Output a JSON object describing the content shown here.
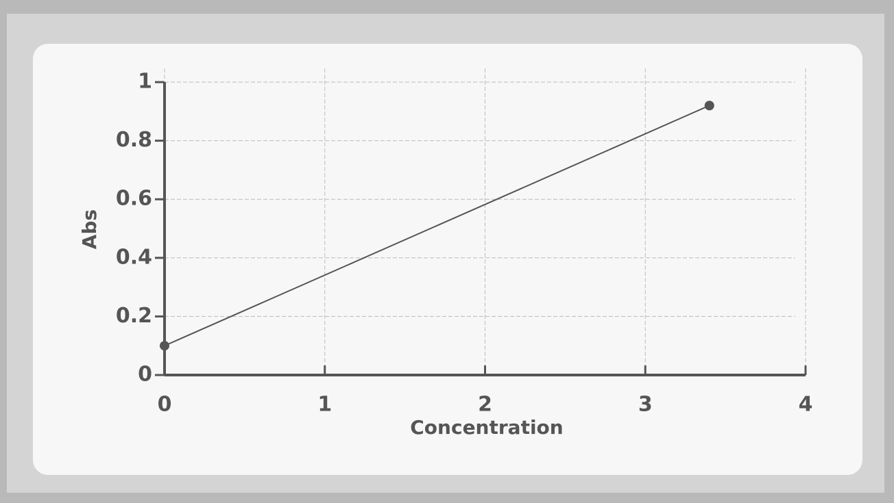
{
  "chart_data": {
    "type": "line",
    "x_label": "Concentration",
    "y_label": "Abs",
    "x": [
      0,
      3.4
    ],
    "values": [
      0.1,
      0.92
    ],
    "color": "#555555",
    "xlim": [
      0,
      4
    ],
    "xticks": [
      0,
      1,
      2,
      3,
      4
    ],
    "ylim": [
      0,
      1
    ],
    "yticks": [
      0,
      0.2,
      0.4,
      0.6,
      0.8,
      1
    ],
    "grid": true
  }
}
